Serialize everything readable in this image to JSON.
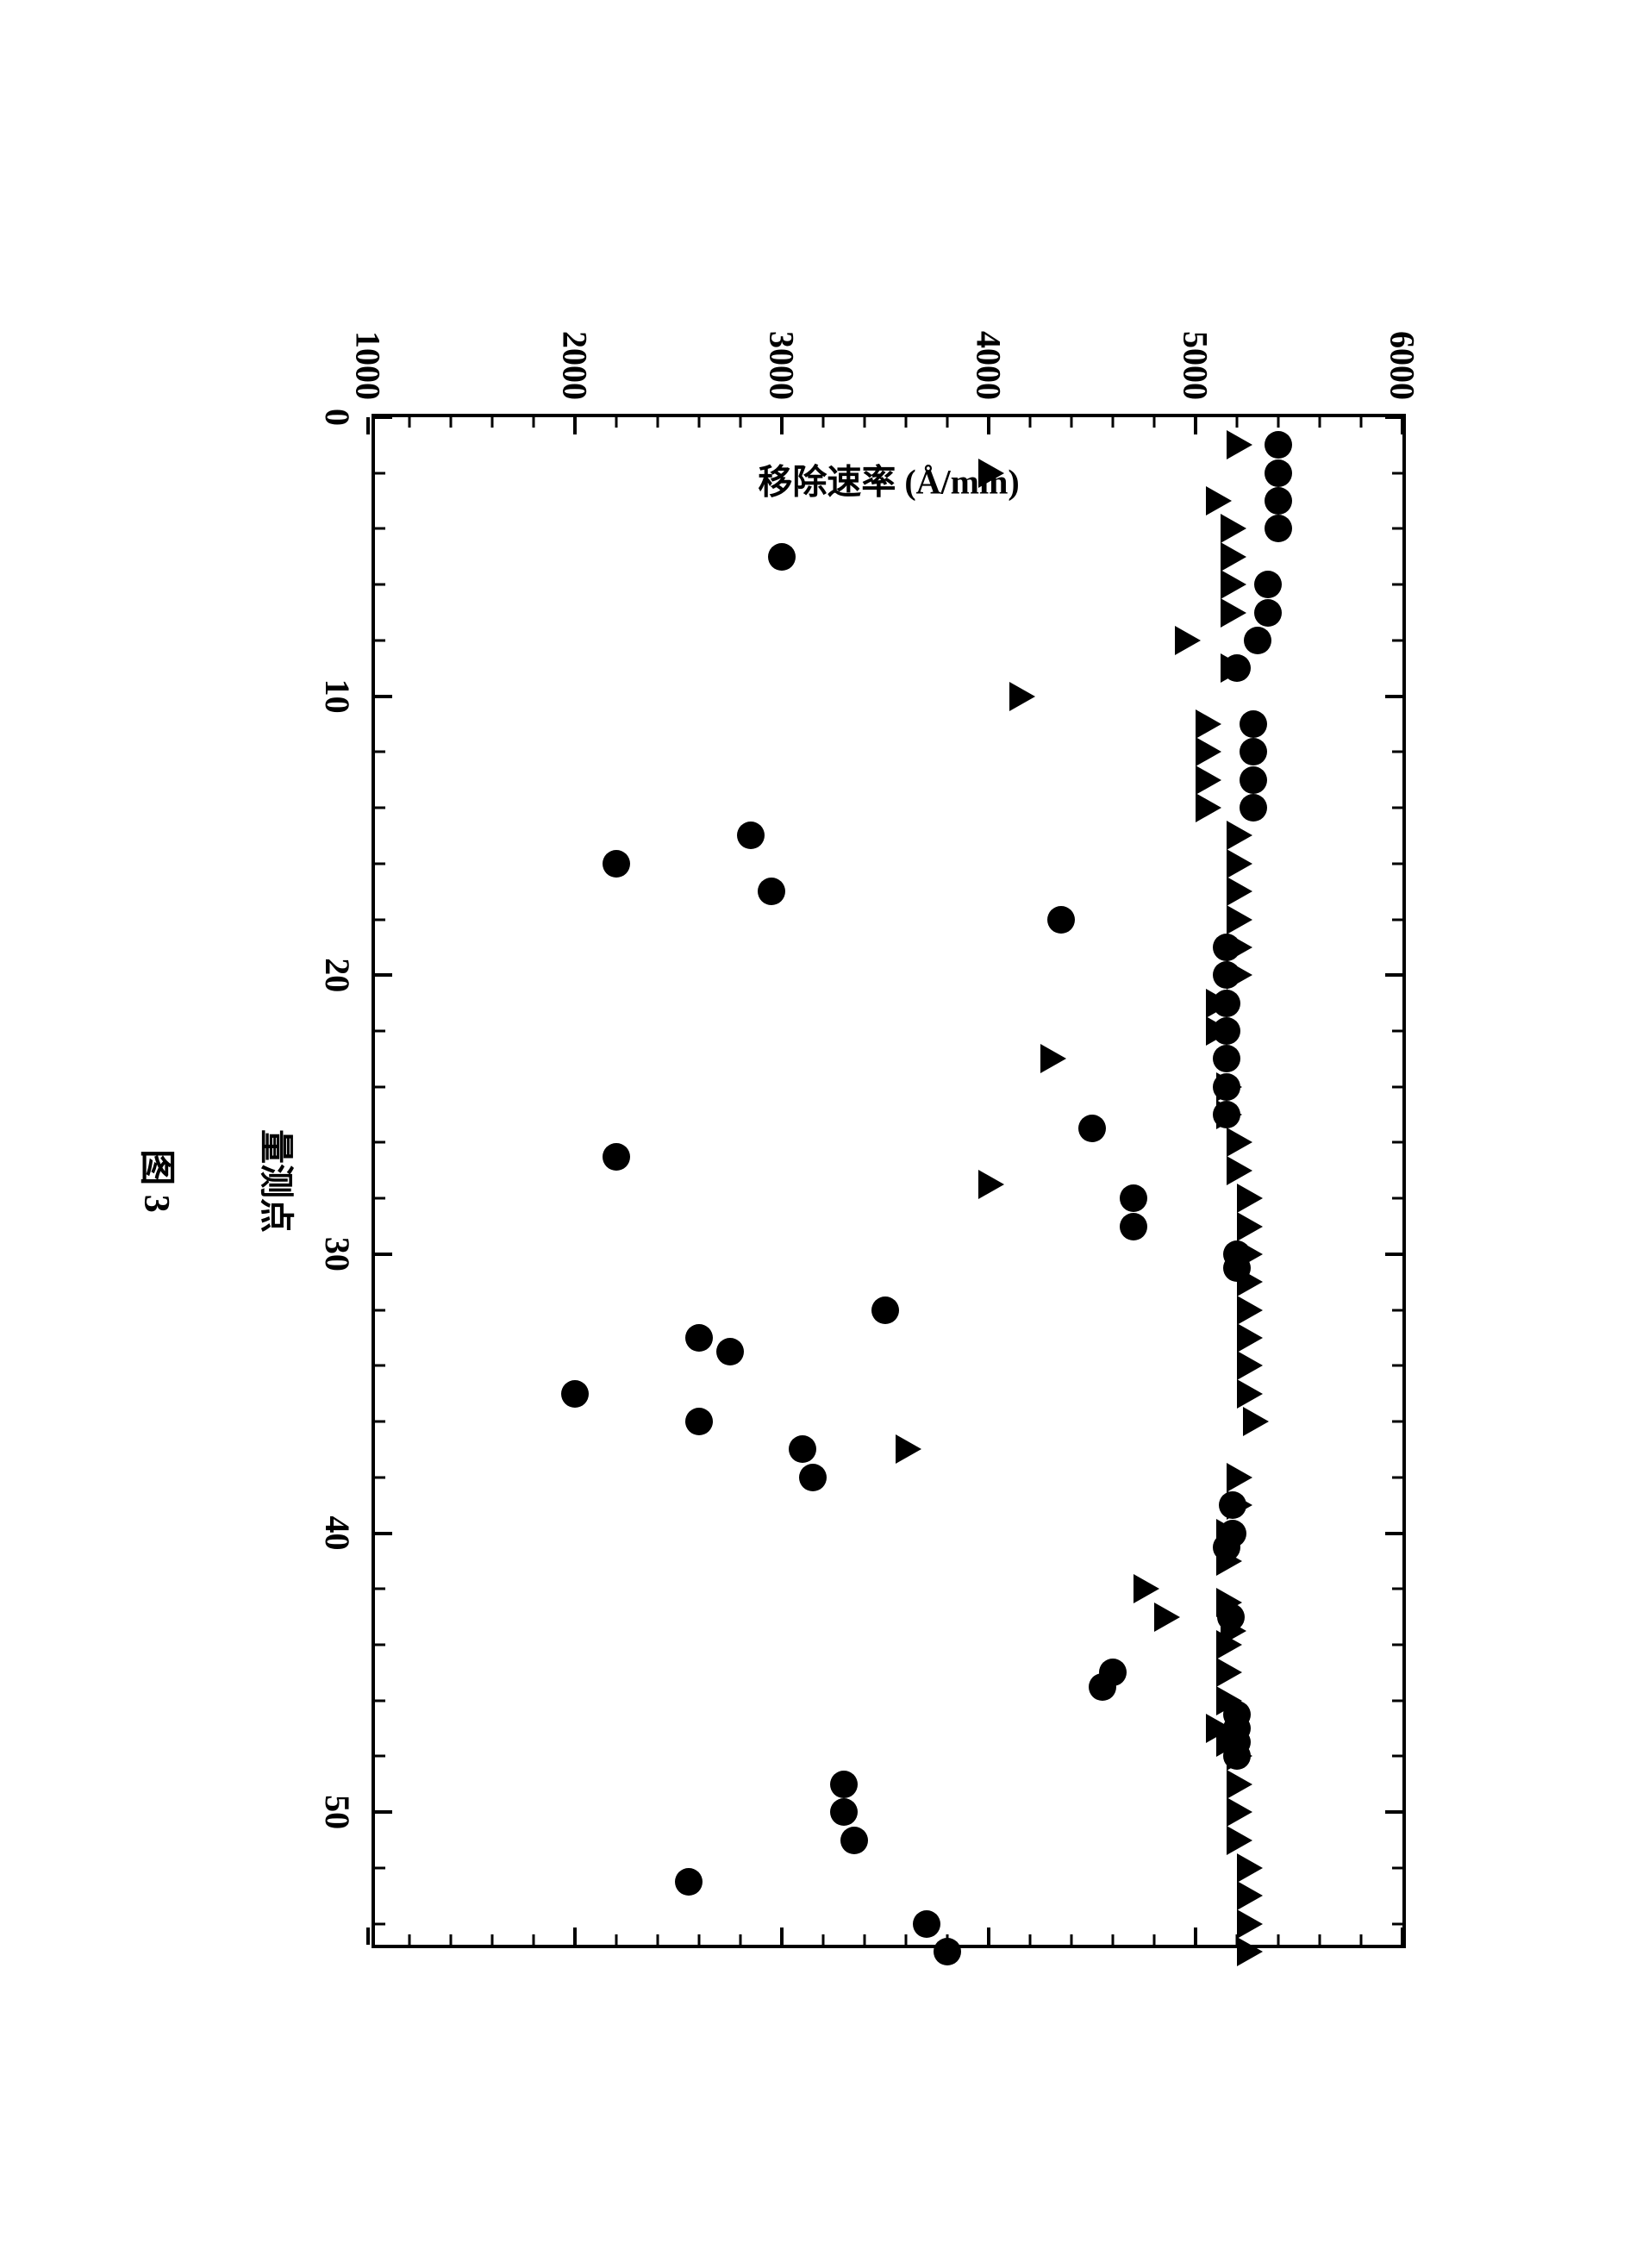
{
  "chart": {
    "type": "scatter",
    "xlabel": "量测点",
    "ylabel": "移除速率 (Å/min)",
    "figure_label": "图 3",
    "xlim": [
      0,
      55
    ],
    "ylim": [
      1000,
      6000
    ],
    "x_major_ticks": [
      0,
      10,
      20,
      30,
      40,
      50
    ],
    "x_minor_step": 2,
    "y_major_ticks": [
      1000,
      2000,
      3000,
      4000,
      5000,
      6000
    ],
    "y_minor_step": 200,
    "background_color": "#ffffff",
    "border_color": "#000000",
    "marker_color": "#000000",
    "label_fontsize": 40,
    "tick_fontsize": 40,
    "circle_size": 32,
    "triangle_size": 34,
    "series": {
      "circles": {
        "marker": "circle",
        "points": [
          [
            1,
            5400
          ],
          [
            2,
            5400
          ],
          [
            3,
            5400
          ],
          [
            4,
            5400
          ],
          [
            5,
            3000
          ],
          [
            6,
            5350
          ],
          [
            7,
            5350
          ],
          [
            8,
            5300
          ],
          [
            9,
            5200
          ],
          [
            11,
            5280
          ],
          [
            12,
            5280
          ],
          [
            13,
            5280
          ],
          [
            14,
            5280
          ],
          [
            15,
            2850
          ],
          [
            16,
            2200
          ],
          [
            17,
            2950
          ],
          [
            18,
            4350
          ],
          [
            19,
            5150
          ],
          [
            20,
            5150
          ],
          [
            21,
            5150
          ],
          [
            22,
            5150
          ],
          [
            23,
            5150
          ],
          [
            24,
            5150
          ],
          [
            25,
            5150
          ],
          [
            25.5,
            4500
          ],
          [
            26.5,
            2200
          ],
          [
            28,
            4700
          ],
          [
            29,
            4700
          ],
          [
            30,
            5200
          ],
          [
            30.5,
            5200
          ],
          [
            32,
            3500
          ],
          [
            33,
            2600
          ],
          [
            33.5,
            2750
          ],
          [
            35,
            2000
          ],
          [
            36,
            2600
          ],
          [
            37,
            3100
          ],
          [
            38,
            3150
          ],
          [
            39,
            5180
          ],
          [
            40,
            5180
          ],
          [
            40.5,
            5150
          ],
          [
            43,
            5170
          ],
          [
            45,
            4600
          ],
          [
            45.5,
            4550
          ],
          [
            46.5,
            5200
          ],
          [
            47,
            5200
          ],
          [
            47.5,
            5200
          ],
          [
            48,
            5200
          ],
          [
            49,
            3300
          ],
          [
            50,
            3300
          ],
          [
            51,
            3350
          ],
          [
            52.5,
            2550
          ],
          [
            54,
            3700
          ],
          [
            55,
            3800
          ]
        ]
      },
      "triangles": {
        "marker": "triangle",
        "points": [
          [
            1,
            5200
          ],
          [
            2,
            4000
          ],
          [
            3,
            5100
          ],
          [
            4,
            5170
          ],
          [
            5,
            5170
          ],
          [
            6,
            5170
          ],
          [
            7,
            5170
          ],
          [
            8,
            4950
          ],
          [
            9,
            5170
          ],
          [
            10,
            4150
          ],
          [
            11,
            5050
          ],
          [
            12,
            5050
          ],
          [
            13,
            5050
          ],
          [
            14,
            5050
          ],
          [
            15,
            5200
          ],
          [
            16,
            5200
          ],
          [
            17,
            5200
          ],
          [
            18,
            5200
          ],
          [
            19,
            5200
          ],
          [
            20,
            5200
          ],
          [
            21,
            5100
          ],
          [
            22,
            5100
          ],
          [
            23,
            4300
          ],
          [
            24,
            5150
          ],
          [
            25,
            5150
          ],
          [
            26,
            5200
          ],
          [
            27,
            5200
          ],
          [
            27.5,
            4000
          ],
          [
            28,
            5250
          ],
          [
            29,
            5250
          ],
          [
            30,
            5250
          ],
          [
            31,
            5250
          ],
          [
            32,
            5250
          ],
          [
            33,
            5250
          ],
          [
            34,
            5250
          ],
          [
            35,
            5250
          ],
          [
            36,
            5280
          ],
          [
            37,
            3600
          ],
          [
            38,
            5200
          ],
          [
            39,
            5200
          ],
          [
            40,
            5150
          ],
          [
            41,
            5150
          ],
          [
            42,
            4750
          ],
          [
            42.5,
            5150
          ],
          [
            43,
            4850
          ],
          [
            43.5,
            5170
          ],
          [
            44,
            5150
          ],
          [
            45,
            5150
          ],
          [
            46,
            5150
          ],
          [
            47,
            5100
          ],
          [
            47.5,
            5150
          ],
          [
            48,
            5200
          ],
          [
            49,
            5200
          ],
          [
            50,
            5200
          ],
          [
            51,
            5200
          ],
          [
            52,
            5250
          ],
          [
            53,
            5250
          ],
          [
            54,
            5250
          ],
          [
            55,
            5250
          ]
        ]
      }
    }
  }
}
